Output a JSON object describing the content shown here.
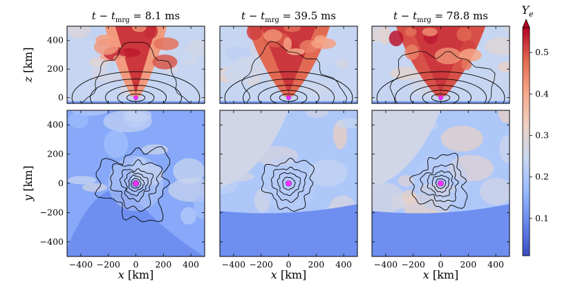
{
  "chart_data": {
    "type": "heatmap",
    "quantity": "Y_e",
    "colorbar": {
      "label": "Y",
      "label_sub": "e",
      "range": [
        0.01,
        0.56
      ],
      "ticks": [
        0.1,
        0.2,
        0.3,
        0.4,
        0.5
      ],
      "tick_labels": [
        "0.1",
        "0.2",
        "0.3",
        "0.4",
        "0.5"
      ],
      "extend": "max",
      "colormap": "coolwarm",
      "stops": [
        "#3b4cc0",
        "#6788ee",
        "#9abbff",
        "#c9d7f0",
        "#edd1c2",
        "#f7a889",
        "#e26952",
        "#b40426"
      ]
    },
    "x_axis": {
      "label_var": "x",
      "label_unit": " [km]",
      "range": [
        -500,
        500
      ],
      "ticks": [
        -400,
        -200,
        0,
        200,
        400
      ],
      "tick_labels": [
        "−400",
        "−200",
        "0",
        "200",
        "400"
      ]
    },
    "row_top": {
      "label_var": "z",
      "label_unit": " [km]",
      "range": [
        -40,
        500
      ],
      "ticks": [
        0,
        200,
        400
      ],
      "tick_labels": [
        "0",
        "200",
        "400"
      ]
    },
    "row_bottom": {
      "label_var": "y",
      "label_unit": " [km]",
      "range": [
        -500,
        500
      ],
      "ticks": [
        -400,
        -200,
        0,
        200,
        400
      ],
      "tick_labels": [
        "−400",
        "−200",
        "0",
        "200",
        "400"
      ]
    },
    "panels": [
      {
        "time_ms": 8.1,
        "title_value": "8.1 ms",
        "top_mean_ye": 0.32,
        "top_red_extent": 0.45,
        "bottom_mean_ye": 0.14,
        "bottom_contour_radii_km": [
          20,
          35,
          55,
          80,
          110,
          170,
          250
        ]
      },
      {
        "time_ms": 39.5,
        "title_value": "39.5 ms",
        "top_mean_ye": 0.38,
        "top_red_extent": 0.6,
        "bottom_mean_ye": 0.2,
        "bottom_contour_radii_km": [
          18,
          45,
          80,
          120,
          180
        ]
      },
      {
        "time_ms": 78.8,
        "title_value": "78.8 ms",
        "top_mean_ye": 0.4,
        "top_red_extent": 0.65,
        "bottom_mean_ye": 0.2,
        "bottom_contour_radii_km": [
          15,
          35,
          60,
          90,
          130,
          190
        ]
      }
    ],
    "title_lhs": "t − t",
    "title_sub": "mrg",
    "title_eq": " = ",
    "marker": "magenta dot at origin"
  }
}
